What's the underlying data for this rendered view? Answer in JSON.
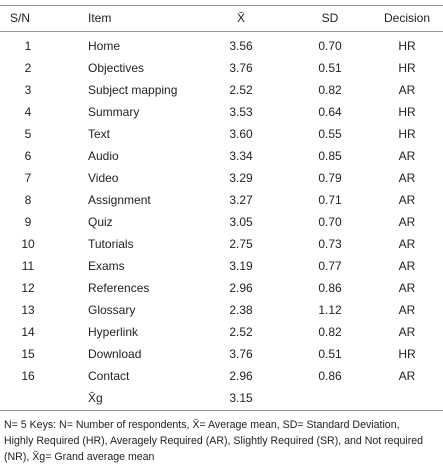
{
  "table": {
    "header": [
      "S/N",
      "Item",
      "X̄",
      "SD",
      "Decision"
    ],
    "rows": [
      [
        "1",
        "Home",
        "3.56",
        "0.70",
        "HR"
      ],
      [
        "2",
        "Objectives",
        "3.76",
        "0.51",
        "HR"
      ],
      [
        "3",
        "Subject mapping",
        "2.52",
        "0.82",
        "AR"
      ],
      [
        "4",
        "Summary",
        "3.53",
        "0.64",
        "HR"
      ],
      [
        "5",
        "Text",
        "3.60",
        "0.55",
        "HR"
      ],
      [
        "6",
        "Audio",
        "3.34",
        "0.85",
        "AR"
      ],
      [
        "7",
        "Video",
        "3.29",
        "0.79",
        "AR"
      ],
      [
        "8",
        "Assignment",
        "3.27",
        "0.71",
        "AR"
      ],
      [
        "9",
        "Quiz",
        "3.05",
        "0.70",
        "AR"
      ],
      [
        "10",
        "Tutorials",
        "2.75",
        "0.73",
        "AR"
      ],
      [
        "11",
        "Exams",
        "3.19",
        "0.77",
        "AR"
      ],
      [
        "12",
        "References",
        "2.96",
        "0.86",
        "AR"
      ],
      [
        "13",
        "Glossary",
        "2.38",
        "1.12",
        "AR"
      ],
      [
        "14",
        "Hyperlink",
        "2.52",
        "0.82",
        "AR"
      ],
      [
        "15",
        "Download",
        "3.76",
        "0.51",
        "HR"
      ],
      [
        "16",
        "Contact",
        "2.96",
        "0.86",
        "AR"
      ]
    ],
    "total": {
      "label": "X̄g",
      "mean": "3.15"
    }
  },
  "footnote": [
    "N= 5  Keys: N= Number of respondents, X̄= Average mean, SD= Standard Deviation,",
    "Highly Required (HR), Averagely Required (AR), Slightly Required (SR), and Not required",
    "(NR), X̄g= Grand average mean"
  ]
}
